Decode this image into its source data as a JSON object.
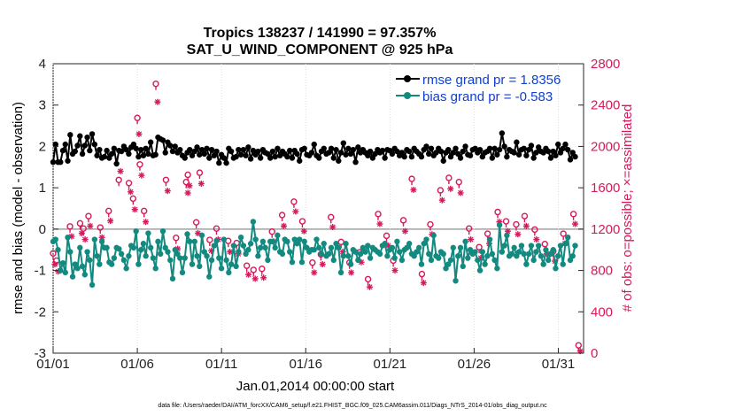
{
  "chart_data": {
    "type": "line",
    "title_line1": "Tropics 138237 / 141990 = 97.357%",
    "title_line2": "SAT_U_WIND_COMPONENT @ 925 hPa",
    "ylabel_left": "rmse and bias (model - observation)",
    "ylabel_right": "# of obs: o=possible; ×=assimilated",
    "xlabel": "Jan.01,2014 00:00:00 start",
    "footnote": "data file: /Users/raeder/DAI/ATM_forcXX/CAM6_setup/f.e21.FHIST_BGC.f09_025.CAM6assim.011/Diags_NTrS_2014-01/obs_diag_output.nc",
    "xlim": [
      0,
      31.5
    ],
    "ylim_left": [
      -3,
      4
    ],
    "ylim_right": [
      0,
      2800
    ],
    "x_ticks": [
      0,
      5,
      10,
      15,
      20,
      25,
      30
    ],
    "x_tick_labels": [
      "01/01",
      "01/06",
      "01/11",
      "01/16",
      "01/21",
      "01/26",
      "01/31"
    ],
    "y_ticks_left": [
      "4",
      "3",
      "2",
      "1",
      "0",
      "-1",
      "-2",
      "-3"
    ],
    "y_ticks_right": [
      "2800",
      "2400",
      "2000",
      "1600",
      "1200",
      "800",
      "400",
      "0"
    ],
    "legend": [
      {
        "name": "rmse",
        "label": "rmse grand pr = 1.8356",
        "color": "#000000"
      },
      {
        "name": "bias",
        "label": "bias grand pr = -0.583",
        "color": "#138a80"
      }
    ],
    "colors": {
      "rmse": "#000000",
      "bias": "#138a80",
      "obs": "#d6195c",
      "zero_line": "#a0a0a0",
      "legend_text": "#1040d0"
    },
    "series": [
      {
        "name": "rmse",
        "axis": "left",
        "values": [
          1.62,
          2.05,
          1.62,
          1.62,
          1.9,
          2.05,
          1.65,
          2.28,
          1.82,
          1.88,
          2.02,
          2.25,
          1.82,
          2.02,
          2.22,
          1.9,
          2.3,
          2.05,
          1.78,
          1.92,
          1.72,
          1.75,
          1.9,
          1.72,
          1.82,
          1.95,
          1.58,
          1.9,
          1.88,
          2.0,
          1.92,
          1.82,
          1.98,
          2.05,
          1.95,
          1.75,
          1.92,
          1.78,
          1.95,
          1.82,
          2.1,
          1.78,
          1.8,
          2.22,
          2.18,
          2.15,
          1.85,
          2.1,
          2.02,
          1.88,
          2.0,
          1.85,
          1.92,
          1.78,
          1.72,
          1.85,
          1.92,
          1.78,
          1.88,
          1.98,
          1.8,
          1.92,
          1.82,
          1.95,
          1.72,
          1.92,
          1.78,
          1.88,
          1.6,
          1.8,
          1.72,
          1.6,
          1.95,
          1.88,
          1.72,
          1.75,
          1.92,
          1.8,
          1.92,
          1.78,
          1.98,
          1.7,
          1.9,
          1.8,
          1.88,
          1.72,
          1.92,
          1.85,
          1.82,
          1.72,
          1.88,
          1.75,
          1.95,
          1.78,
          1.88,
          1.82,
          1.75,
          1.9,
          1.72,
          1.9,
          1.82,
          1.65,
          1.92,
          1.95,
          1.8,
          1.78,
          1.85,
          2.05,
          1.78,
          1.72,
          1.88,
          1.95,
          1.82,
          1.85,
          1.95,
          1.72,
          1.92,
          1.65,
          1.85,
          2.08,
          1.8,
          1.95,
          1.82,
          1.92,
          1.62,
          1.98,
          1.85,
          1.92,
          1.85,
          1.78,
          1.88,
          1.72,
          1.82,
          1.92,
          1.85,
          1.9,
          1.72,
          1.92,
          1.9,
          1.82,
          1.95,
          1.88,
          1.78,
          1.85,
          1.75,
          1.92,
          1.88,
          1.75,
          1.95,
          1.88,
          1.82,
          1.75,
          1.92,
          2.0,
          1.82,
          1.95,
          1.78,
          1.85,
          1.95,
          1.88,
          1.65,
          1.85,
          1.92,
          1.75,
          1.85,
          1.95,
          1.82,
          1.72,
          1.88,
          2.0,
          1.8,
          1.78,
          1.92,
          1.95,
          1.85,
          1.92,
          1.75,
          1.85,
          1.88,
          1.95,
          1.72,
          1.95,
          1.8,
          1.92,
          2.32,
          2.0,
          1.75,
          1.92,
          1.88,
          1.85,
          2.1,
          1.8,
          1.92,
          1.95,
          1.78,
          1.92,
          2.02,
          1.72,
          1.85,
          1.98,
          1.88,
          1.85,
          1.95,
          1.88,
          1.72,
          1.88,
          1.78,
          2.05,
          1.85,
          1.95,
          2.05,
          1.92,
          1.68,
          1.85,
          1.75
        ]
      },
      {
        "name": "bias",
        "axis": "left",
        "values": [
          -0.3,
          -0.25,
          -0.5,
          -1.0,
          -0.82,
          -1.05,
          -0.2,
          -0.55,
          -1.15,
          -0.85,
          -0.95,
          -0.45,
          -0.9,
          -1.1,
          -0.55,
          -0.75,
          -1.35,
          -0.25,
          -0.65,
          -0.85,
          -0.3,
          -0.45,
          -0.45,
          -0.8,
          -0.85,
          -0.7,
          -0.45,
          -0.48,
          -0.6,
          -0.75,
          -0.95,
          -0.65,
          -0.4,
          -0.45,
          -0.05,
          -0.85,
          -0.5,
          -0.35,
          -0.65,
          -0.1,
          -0.45,
          -0.7,
          -0.95,
          -0.3,
          -0.6,
          -0.05,
          -0.45,
          -0.55,
          -0.75,
          -1.2,
          -0.5,
          -0.6,
          -0.7,
          -1.05,
          -0.7,
          -0.12,
          -0.3,
          -0.85,
          -0.3,
          -0.65,
          -0.9,
          -0.15,
          -0.55,
          -0.65,
          -1.15,
          -0.75,
          -0.4,
          -0.28,
          -0.7,
          -0.95,
          -0.25,
          -0.75,
          -1.05,
          -0.85,
          -0.4,
          -0.9,
          -0.55,
          -0.2,
          -0.4,
          -0.6,
          -0.5,
          -0.35,
          0.18,
          -0.25,
          -0.65,
          -0.45,
          -0.3,
          -0.45,
          -0.75,
          -0.3,
          -0.3,
          -0.45,
          -0.15,
          -0.55,
          -0.6,
          -0.25,
          -0.3,
          -0.55,
          -0.8,
          -0.25,
          -0.35,
          -0.25,
          -0.8,
          -0.3,
          -0.45,
          -0.55,
          -0.5,
          -0.5,
          -0.25,
          -0.45,
          -0.6,
          -0.35,
          -0.65,
          -0.6,
          -0.45,
          -0.75,
          -0.35,
          -0.45,
          -1.05,
          -0.65,
          -0.35,
          -0.65,
          -0.85,
          -0.5,
          -0.55,
          -0.75,
          -0.6,
          -0.45,
          -0.55,
          -0.4,
          -0.7,
          -0.45,
          -0.5,
          -0.55,
          -0.6,
          -0.4,
          -0.35,
          -0.65,
          -0.5,
          -0.45,
          -0.7,
          -0.3,
          -0.55,
          -0.75,
          -0.5,
          -0.45,
          -0.35,
          -0.6,
          -0.65,
          -0.55,
          -0.45,
          -0.85,
          -0.35,
          -0.25,
          -0.6,
          -0.75,
          -0.15,
          -0.65,
          -0.7,
          -0.55,
          -0.6,
          -0.95,
          -0.85,
          -0.75,
          -0.45,
          -1.25,
          -0.65,
          -0.45,
          -0.9,
          -0.3,
          -0.7,
          -0.5,
          -0.6,
          -0.55,
          -0.75,
          -1.0,
          -0.55,
          -0.85,
          -0.65,
          -0.25,
          -0.6,
          -0.75,
          -0.95,
          0.1,
          -0.55,
          -0.4,
          -0.15,
          -0.65,
          -0.6,
          -0.45,
          -0.65,
          -0.55,
          -0.4,
          -0.6,
          -0.85,
          -0.6,
          -0.4,
          -0.75,
          -0.55,
          -0.4,
          -0.65,
          -0.85,
          -0.5,
          -0.75,
          -0.6,
          -0.5,
          -0.95,
          -0.65,
          -0.4,
          -0.85,
          -0.35,
          -0.2,
          -0.75,
          -0.65,
          -0.4
        ]
      },
      {
        "name": "obs_possible",
        "axis": "right",
        "marker": "o",
        "x": [
          0.0,
          0.2,
          1.0,
          1.6,
          1.8,
          2.1,
          2.8,
          3.3,
          3.9,
          4.5,
          4.75,
          5.0,
          5.15,
          5.4,
          6.1,
          6.7,
          7.3,
          7.9,
          8.0,
          8.5,
          8.7,
          9.3,
          9.7,
          10.4,
          10.9,
          11.5,
          11.9,
          12.4,
          13.0,
          13.6,
          14.3,
          14.8,
          15.4,
          15.9,
          16.5,
          17.1,
          17.6,
          18.2,
          18.7,
          19.3,
          19.8,
          20.2,
          20.8,
          21.3,
          21.9,
          22.4,
          23.0,
          23.5,
          24.1,
          24.7,
          25.3,
          25.8,
          26.4,
          26.9,
          27.5,
          28.0,
          28.6,
          29.2,
          29.7,
          30.3,
          30.9,
          31.2
        ],
        "values": [
          940,
          870,
          1200,
          1230,
          1180,
          1300,
          1190,
          1350,
          1650,
          1620,
          1470,
          2250,
          1800,
          1350,
          2580,
          1650,
          1090,
          1630,
          1700,
          1240,
          1720,
          1070,
          1180,
          1060,
          1040,
          820,
          780,
          790,
          1150,
          1310,
          1440,
          1250,
          850,
          930,
          1290,
          1050,
          850,
          950,
          690,
          1320,
          1110,
          870,
          1260,
          1660,
          740,
          1220,
          1550,
          1670,
          1630,
          1180,
          1000,
          1130,
          1340,
          1250,
          1220,
          1300,
          1170,
          1030,
          960,
          1130,
          1320,
          50
        ]
      },
      {
        "name": "obs_assimilated",
        "axis": "right",
        "marker": "x",
        "x": [
          0.1,
          0.3,
          1.1,
          1.7,
          1.9,
          2.2,
          2.9,
          3.4,
          4.0,
          4.6,
          4.85,
          5.1,
          5.25,
          5.5,
          6.2,
          6.8,
          7.4,
          8.0,
          8.1,
          8.6,
          8.8,
          9.4,
          9.8,
          10.5,
          11.0,
          11.6,
          12.0,
          12.5,
          13.1,
          13.7,
          14.4,
          14.9,
          15.5,
          16.0,
          16.6,
          17.2,
          17.7,
          18.3,
          18.8,
          19.4,
          19.9,
          20.3,
          20.9,
          21.4,
          22.0,
          22.5,
          23.1,
          23.6,
          24.2,
          24.8,
          25.4,
          25.9,
          26.5,
          27.0,
          27.6,
          28.1,
          28.7,
          29.3,
          29.8,
          30.4,
          31.0,
          31.3
        ],
        "values": [
          860,
          790,
          1130,
          1160,
          1100,
          1230,
          1120,
          1280,
          1760,
          1560,
          1390,
          2120,
          1720,
          1270,
          2430,
          1570,
          1010,
          1550,
          1620,
          1160,
          1640,
          990,
          1100,
          980,
          960,
          760,
          720,
          730,
          1080,
          1230,
          1370,
          1180,
          780,
          860,
          1220,
          980,
          780,
          880,
          640,
          1250,
          1040,
          800,
          1180,
          1580,
          680,
          1150,
          1480,
          1590,
          1550,
          1100,
          920,
          1060,
          1270,
          1180,
          1150,
          1230,
          1100,
          960,
          890,
          1060,
          1250,
          20
        ]
      }
    ]
  }
}
